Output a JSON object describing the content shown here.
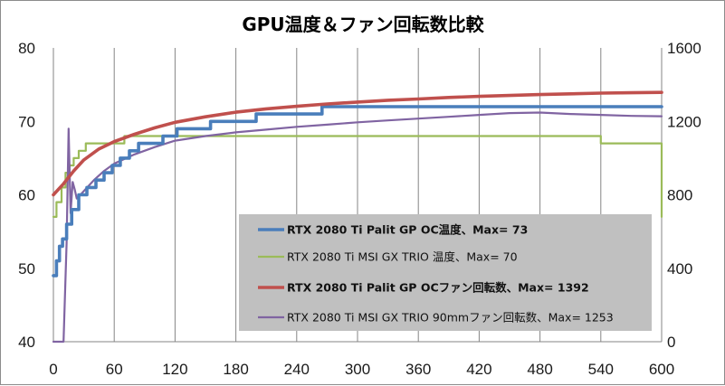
{
  "chart_data": {
    "type": "line",
    "title": "GPU温度＆ファン回転数比較",
    "xlabel": "",
    "ylabel": "",
    "xlim": [
      0,
      600
    ],
    "ylim": [
      40,
      80
    ],
    "y2lim": [
      0,
      1600
    ],
    "x_ticks": [
      "0",
      "60",
      "120",
      "180",
      "240",
      "300",
      "360",
      "420",
      "480",
      "540",
      "600"
    ],
    "y_ticks": [
      "40",
      "50",
      "60",
      "70",
      "80"
    ],
    "y2_ticks": [
      "0",
      "400",
      "800",
      "1200",
      "1600"
    ],
    "grid": "vertical",
    "legend_position": "center-right",
    "series": [
      {
        "name": "RTX 2080 Ti Palit GP OC温度、Max= 73",
        "axis": "left",
        "color": "#4a7ebb",
        "bold": true,
        "style": "step",
        "x": [
          0,
          3,
          6,
          9,
          13,
          18,
          25,
          33,
          42,
          50,
          58,
          66,
          75,
          84,
          95,
          108,
          122,
          140,
          155,
          160,
          175,
          200,
          230,
          260,
          265,
          270,
          300,
          330,
          360,
          600
        ],
        "y": [
          49,
          51,
          53,
          54,
          56,
          58,
          60,
          61,
          62,
          63,
          64,
          65,
          66,
          67,
          67,
          68,
          69,
          69,
          70,
          70,
          70,
          71,
          71,
          71,
          72,
          72,
          72,
          72,
          72,
          72
        ]
      },
      {
        "name": "RTX 2080 Ti MSI  GX TRIO 温度、Max= 70",
        "axis": "left",
        "color": "#9bbb59",
        "bold": false,
        "style": "step",
        "x": [
          0,
          3,
          8,
          12,
          16,
          20,
          25,
          32,
          42,
          55,
          70,
          90,
          110,
          150,
          200,
          300,
          380,
          420,
          490,
          540,
          598,
          600
        ],
        "y": [
          57,
          59,
          61,
          63,
          64,
          65,
          66,
          67,
          67,
          67,
          68,
          68,
          68,
          68,
          68,
          68,
          68,
          68,
          68,
          67,
          67,
          57
        ]
      },
      {
        "name": "RTX 2080 Ti Palit GP OCファン回転数、Max= 1392",
        "axis": "right",
        "color": "#c0504d",
        "bold": true,
        "style": "smooth",
        "x": [
          0,
          10,
          20,
          30,
          45,
          60,
          80,
          100,
          120,
          150,
          180,
          210,
          240,
          270,
          300,
          330,
          360,
          390,
          420,
          450,
          480,
          510,
          540,
          570,
          600
        ],
        "y": [
          800,
          860,
          930,
          990,
          1050,
          1090,
          1130,
          1165,
          1195,
          1225,
          1250,
          1268,
          1282,
          1295,
          1305,
          1315,
          1322,
          1330,
          1336,
          1341,
          1346,
          1350,
          1354,
          1356,
          1358
        ]
      },
      {
        "name": "RTX 2080 Ti MSI  GX TRIO 90mmファン回転数、Max= 1253",
        "axis": "right",
        "color": "#8064a2",
        "bold": false,
        "style": "smooth",
        "x": [
          0,
          10,
          13,
          15,
          17,
          19,
          21,
          23,
          25,
          30,
          40,
          50,
          60,
          80,
          100,
          120,
          150,
          180,
          210,
          240,
          270,
          300,
          330,
          360,
          390,
          420,
          450,
          480,
          510,
          540,
          570,
          600
        ],
        "y": [
          0,
          0,
          540,
          1160,
          700,
          870,
          830,
          780,
          790,
          820,
          880,
          930,
          970,
          1020,
          1060,
          1095,
          1120,
          1140,
          1155,
          1170,
          1182,
          1195,
          1205,
          1215,
          1225,
          1235,
          1245,
          1248,
          1240,
          1235,
          1230,
          1228
        ]
      }
    ]
  }
}
